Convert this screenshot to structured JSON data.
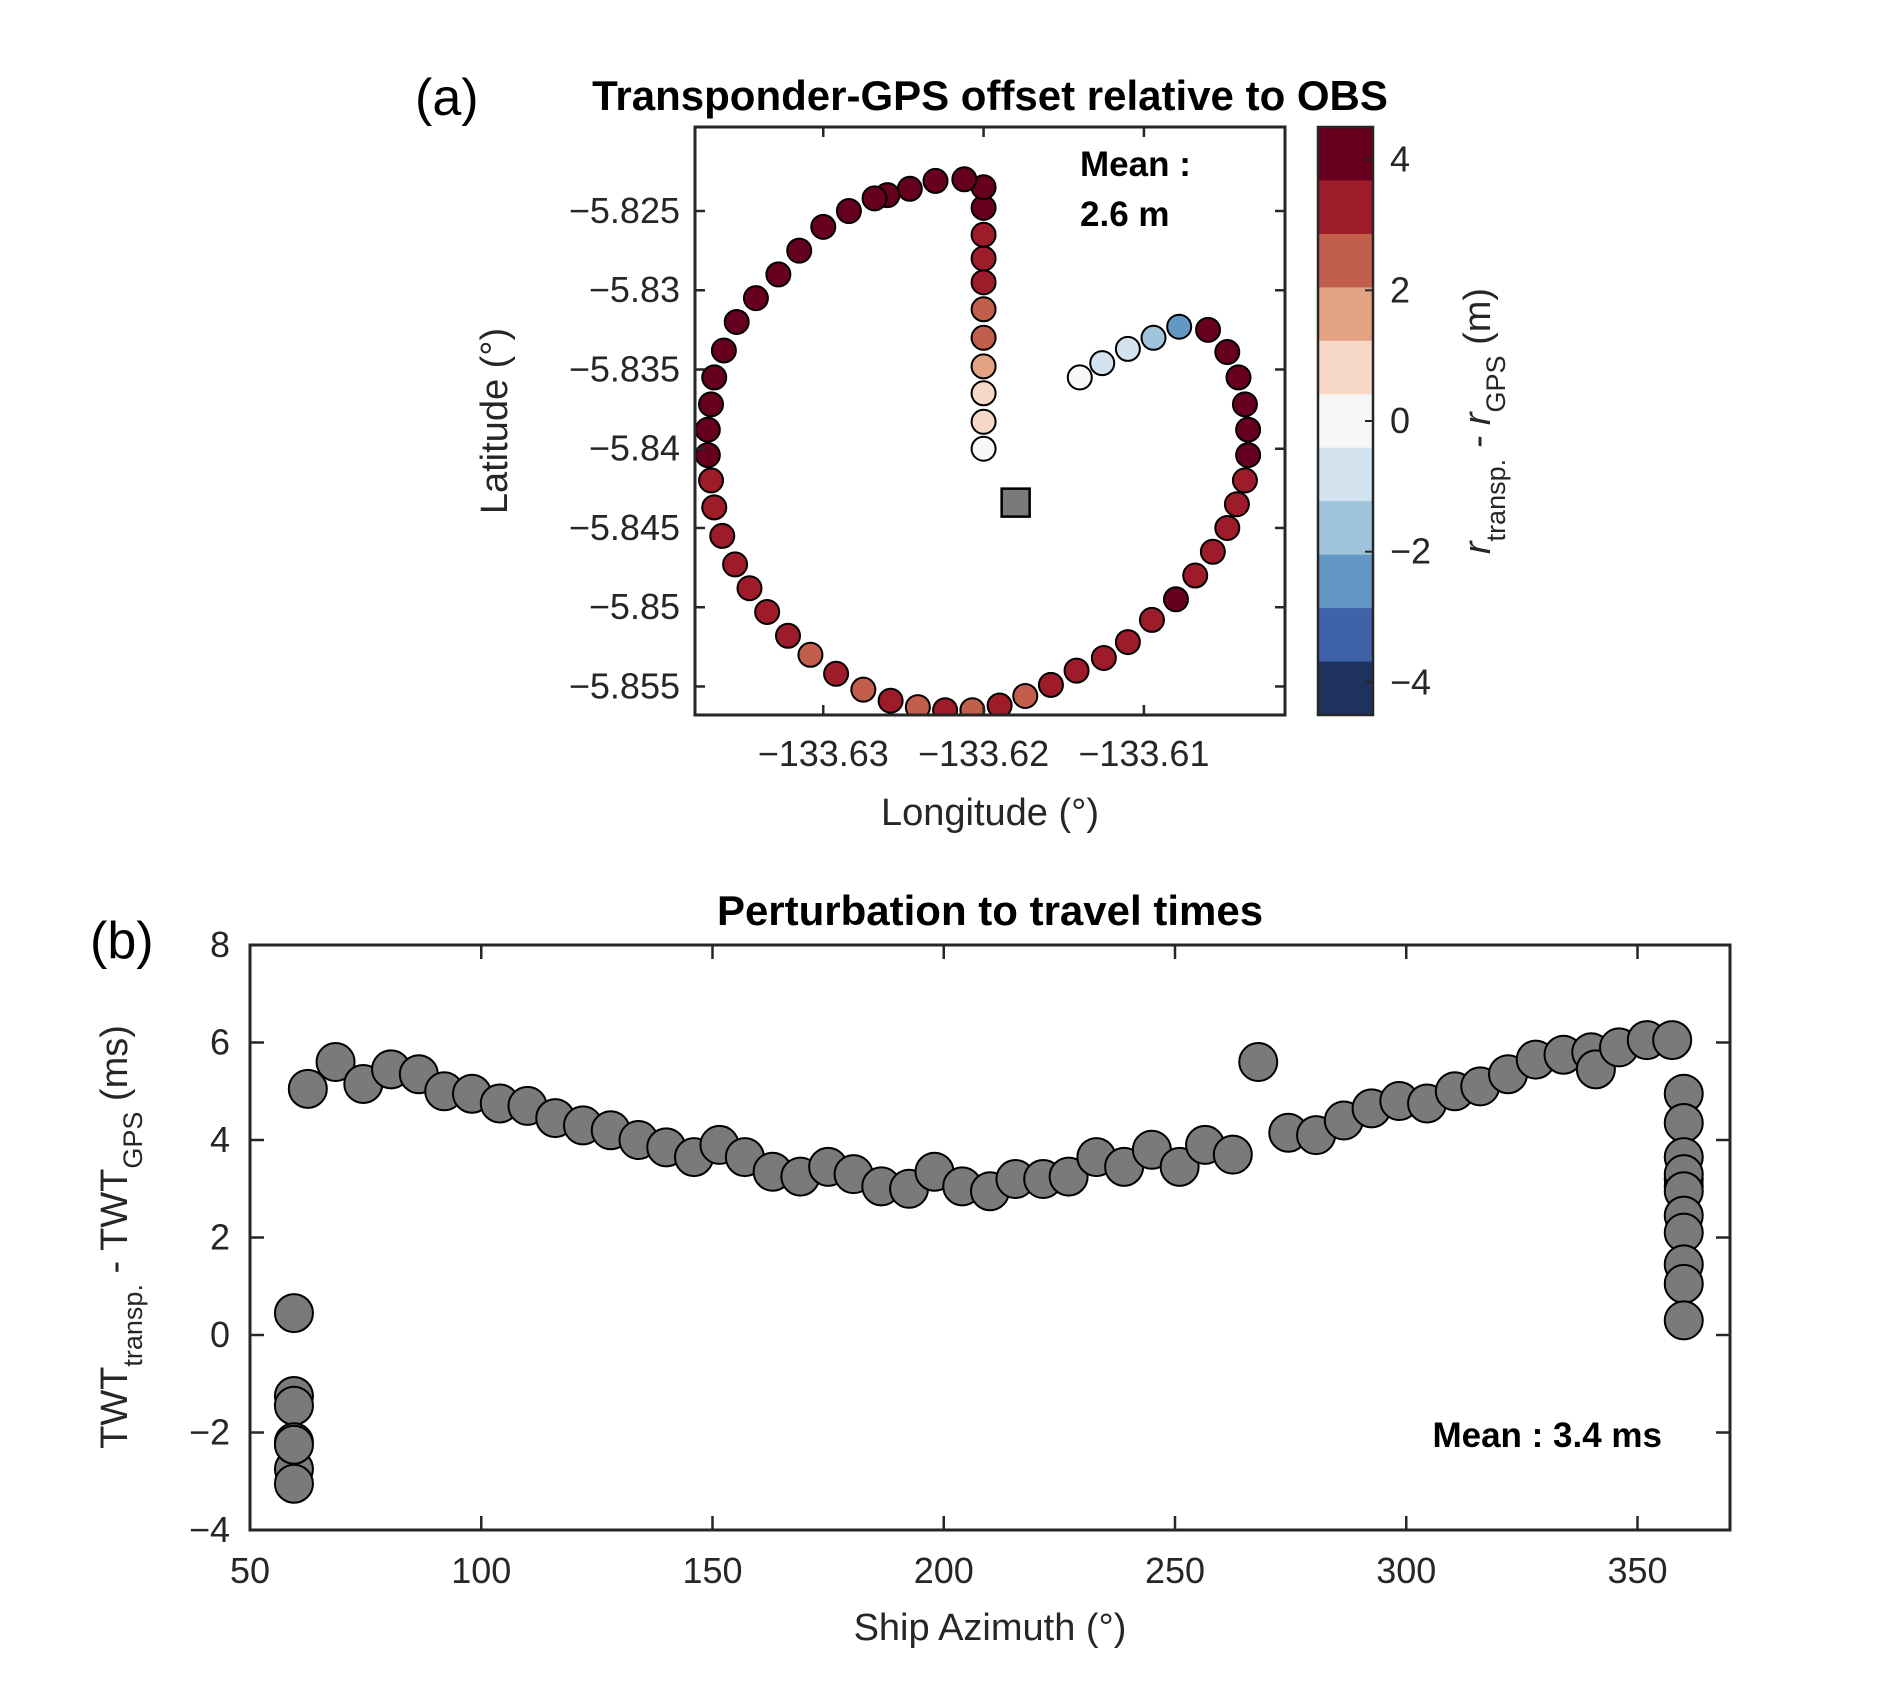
{
  "chart_data": [
    {
      "panel_label": "(a)",
      "type": "scatter",
      "title": "Transponder-GPS offset relative to OBS",
      "xlabel": "Longitude (°)",
      "ylabel": "Latitude (°)",
      "xlim": [
        -133.638,
        -133.6012
      ],
      "ylim": [
        -5.8568,
        -5.8197
      ],
      "xticks": [
        -133.63,
        -133.62,
        -133.61
      ],
      "xtick_labels": [
        "−133.63",
        "−133.62",
        "−133.61"
      ],
      "yticks": [
        -5.825,
        -5.83,
        -5.835,
        -5.84,
        -5.845,
        -5.85,
        -5.855
      ],
      "ytick_labels": [
        "−5.825",
        "−5.83",
        "−5.835",
        "−5.84",
        "−5.845",
        "−5.85",
        "−5.855"
      ],
      "annotation": [
        "Mean :",
        "2.6 m"
      ],
      "obs_marker": {
        "lon": -133.618,
        "lat": -5.8434
      },
      "colorbar": {
        "label_main": "r",
        "label_sub1": "transp.",
        "label_mid": " - r",
        "label_sub2": "GPS",
        "label_unit": " (m)",
        "range": [
          -4.5,
          4.5
        ],
        "ticks": [
          4,
          2,
          0,
          -2,
          -4
        ],
        "tick_labels": [
          "4",
          "2",
          "0",
          "−2",
          "−4"
        ],
        "colors": [
          "#67001f",
          "#9e1c2a",
          "#c25f4c",
          "#e3a383",
          "#f7d7c5",
          "#f7f7f7",
          "#d2e3ef",
          "#9fc4dc",
          "#6397c4",
          "#3f62a8",
          "#1e3260"
        ]
      },
      "points": [
        {
          "lon": -133.62,
          "lat": -5.84,
          "v": 0.2
        },
        {
          "lon": -133.62,
          "lat": -5.8383,
          "v": 0.6
        },
        {
          "lon": -133.62,
          "lat": -5.8365,
          "v": 1.0
        },
        {
          "lon": -133.62,
          "lat": -5.8348,
          "v": 1.6
        },
        {
          "lon": -133.62,
          "lat": -5.833,
          "v": 2.1
        },
        {
          "lon": -133.62,
          "lat": -5.8312,
          "v": 2.6
        },
        {
          "lon": -133.62,
          "lat": -5.8295,
          "v": 2.9
        },
        {
          "lon": -133.62,
          "lat": -5.828,
          "v": 3.1
        },
        {
          "lon": -133.62,
          "lat": -5.8265,
          "v": 3.4
        },
        {
          "lon": -133.62,
          "lat": -5.8248,
          "v": 3.8
        },
        {
          "lon": -133.62,
          "lat": -5.8235,
          "v": 4.4
        },
        {
          "lon": -133.6212,
          "lat": -5.823,
          "v": 4.5
        },
        {
          "lon": -133.623,
          "lat": -5.8231,
          "v": 4.4
        },
        {
          "lon": -133.6246,
          "lat": -5.8236,
          "v": 4.2
        },
        {
          "lon": -133.626,
          "lat": -5.824,
          "v": 4.0
        },
        {
          "lon": -133.6268,
          "lat": -5.8242,
          "v": 4.1
        },
        {
          "lon": -133.6284,
          "lat": -5.825,
          "v": 3.8
        },
        {
          "lon": -133.63,
          "lat": -5.826,
          "v": 4.2
        },
        {
          "lon": -133.6315,
          "lat": -5.8275,
          "v": 4.3
        },
        {
          "lon": -133.6328,
          "lat": -5.829,
          "v": 4.2
        },
        {
          "lon": -133.6342,
          "lat": -5.8305,
          "v": 4.4
        },
        {
          "lon": -133.6354,
          "lat": -5.832,
          "v": 4.3
        },
        {
          "lon": -133.6362,
          "lat": -5.8338,
          "v": 4.1
        },
        {
          "lon": -133.6368,
          "lat": -5.8355,
          "v": 4.0
        },
        {
          "lon": -133.637,
          "lat": -5.8372,
          "v": 4.2
        },
        {
          "lon": -133.6372,
          "lat": -5.8388,
          "v": 4.4
        },
        {
          "lon": -133.6372,
          "lat": -5.8404,
          "v": 4.5
        },
        {
          "lon": -133.637,
          "lat": -5.842,
          "v": 2.9
        },
        {
          "lon": -133.6368,
          "lat": -5.8437,
          "v": 3.6
        },
        {
          "lon": -133.6363,
          "lat": -5.8455,
          "v": 3.2
        },
        {
          "lon": -133.6355,
          "lat": -5.8473,
          "v": 3.0
        },
        {
          "lon": -133.6346,
          "lat": -5.8488,
          "v": 3.1
        },
        {
          "lon": -133.6335,
          "lat": -5.8503,
          "v": 2.9
        },
        {
          "lon": -133.6322,
          "lat": -5.8518,
          "v": 3.0
        },
        {
          "lon": -133.6308,
          "lat": -5.853,
          "v": 2.8
        },
        {
          "lon": -133.6292,
          "lat": -5.8542,
          "v": 2.9
        },
        {
          "lon": -133.6275,
          "lat": -5.8552,
          "v": 2.8
        },
        {
          "lon": -133.6258,
          "lat": -5.8559,
          "v": 2.9
        },
        {
          "lon": -133.6241,
          "lat": -5.8563,
          "v": 2.8
        },
        {
          "lon": -133.6224,
          "lat": -5.8565,
          "v": 2.9
        },
        {
          "lon": -133.6207,
          "lat": -5.8565,
          "v": 2.8
        },
        {
          "lon": -133.619,
          "lat": -5.8562,
          "v": 2.9
        },
        {
          "lon": -133.6174,
          "lat": -5.8556,
          "v": 2.7
        },
        {
          "lon": -133.6158,
          "lat": -5.8549,
          "v": 2.9
        },
        {
          "lon": -133.6142,
          "lat": -5.854,
          "v": 3.2
        },
        {
          "lon": -133.6125,
          "lat": -5.8532,
          "v": 2.9
        },
        {
          "lon": -133.611,
          "lat": -5.8522,
          "v": 3.0
        },
        {
          "lon": -133.6095,
          "lat": -5.8508,
          "v": 3.6
        },
        {
          "lon": -133.608,
          "lat": -5.8495,
          "v": 3.9
        },
        {
          "lon": -133.6068,
          "lat": -5.848,
          "v": 3.3
        },
        {
          "lon": -133.6057,
          "lat": -5.8465,
          "v": 3.4
        },
        {
          "lon": -133.6048,
          "lat": -5.845,
          "v": 3.2
        },
        {
          "lon": -133.6042,
          "lat": -5.8435,
          "v": 3.1
        },
        {
          "lon": -133.6037,
          "lat": -5.842,
          "v": 3.6
        },
        {
          "lon": -133.6035,
          "lat": -5.8404,
          "v": 4.5
        },
        {
          "lon": -133.6035,
          "lat": -5.8388,
          "v": 4.4
        },
        {
          "lon": -133.6037,
          "lat": -5.8372,
          "v": 4.3
        },
        {
          "lon": -133.6041,
          "lat": -5.8355,
          "v": 4.5
        },
        {
          "lon": -133.6048,
          "lat": -5.8339,
          "v": 4.2
        },
        {
          "lon": -133.606,
          "lat": -5.8325,
          "v": 4.5
        },
        {
          "lon": -133.6078,
          "lat": -5.8323,
          "v": -2.6
        },
        {
          "lon": -133.6094,
          "lat": -5.833,
          "v": -1.8
        },
        {
          "lon": -133.611,
          "lat": -5.8337,
          "v": -1.1
        },
        {
          "lon": -133.6126,
          "lat": -5.8346,
          "v": -0.6
        },
        {
          "lon": -133.614,
          "lat": -5.8355,
          "v": 0.0
        }
      ]
    },
    {
      "panel_label": "(b)",
      "type": "scatter",
      "title": "Perturbation to travel times",
      "xlabel": "Ship Azimuth (°)",
      "ylabel_main": "TWT",
      "ylabel_sub1": "transp.",
      "ylabel_mid": " - TWT",
      "ylabel_sub2": "GPS",
      "ylabel_unit": " (ms)",
      "xlim": [
        50,
        370
      ],
      "ylim": [
        -4,
        8
      ],
      "xticks": [
        50,
        100,
        150,
        200,
        250,
        300,
        350
      ],
      "xtick_labels": [
        "50",
        "100",
        "150",
        "200",
        "250",
        "300",
        "350"
      ],
      "yticks": [
        -4,
        -2,
        0,
        2,
        4,
        6,
        8
      ],
      "ytick_labels": [
        "−4",
        "−2",
        "0",
        "2",
        "4",
        "6",
        "8"
      ],
      "annotation": "Mean : 3.4 ms",
      "marker_color": "#7a7a7a",
      "x": [
        59.5,
        59.5,
        59.5,
        59.5,
        59.5,
        59.5,
        59.5,
        62.5,
        68.5,
        74.5,
        80.5,
        86.5,
        92,
        98,
        104,
        110,
        116,
        122,
        128,
        134,
        140,
        146,
        151.5,
        157,
        163,
        169,
        175,
        180.5,
        186.5,
        192.5,
        198,
        204,
        210,
        215.5,
        221.5,
        227,
        233,
        239,
        245,
        251,
        256.5,
        262.5,
        268,
        274.5,
        280.5,
        286.5,
        292.5,
        298.5,
        304.5,
        310.5,
        316,
        322,
        328,
        334,
        340,
        341,
        346,
        352,
        357.5,
        360,
        360,
        360,
        360,
        360,
        360,
        360,
        360,
        360,
        360,
        360,
        360
      ],
      "y": [
        0.45,
        -1.25,
        -1.45,
        -2.2,
        -2.75,
        -3.05,
        -2.25,
        5.05,
        5.6,
        5.15,
        5.45,
        5.35,
        5.0,
        4.95,
        4.75,
        4.7,
        4.45,
        4.3,
        4.2,
        4.0,
        3.85,
        3.65,
        3.9,
        3.65,
        3.35,
        3.25,
        3.45,
        3.3,
        3.05,
        3.0,
        3.35,
        3.05,
        2.95,
        3.2,
        3.2,
        3.25,
        3.65,
        3.45,
        3.8,
        3.45,
        3.9,
        3.7,
        5.6,
        4.15,
        4.1,
        4.4,
        4.65,
        4.8,
        4.75,
        5.0,
        5.1,
        5.35,
        5.65,
        5.75,
        5.8,
        5.45,
        5.9,
        6.05,
        6.05,
        4.95,
        4.35,
        3.65,
        3.2,
        3.05,
        3.3,
        2.95,
        2.45,
        2.1,
        1.45,
        1.05,
        0.3
      ]
    }
  ]
}
